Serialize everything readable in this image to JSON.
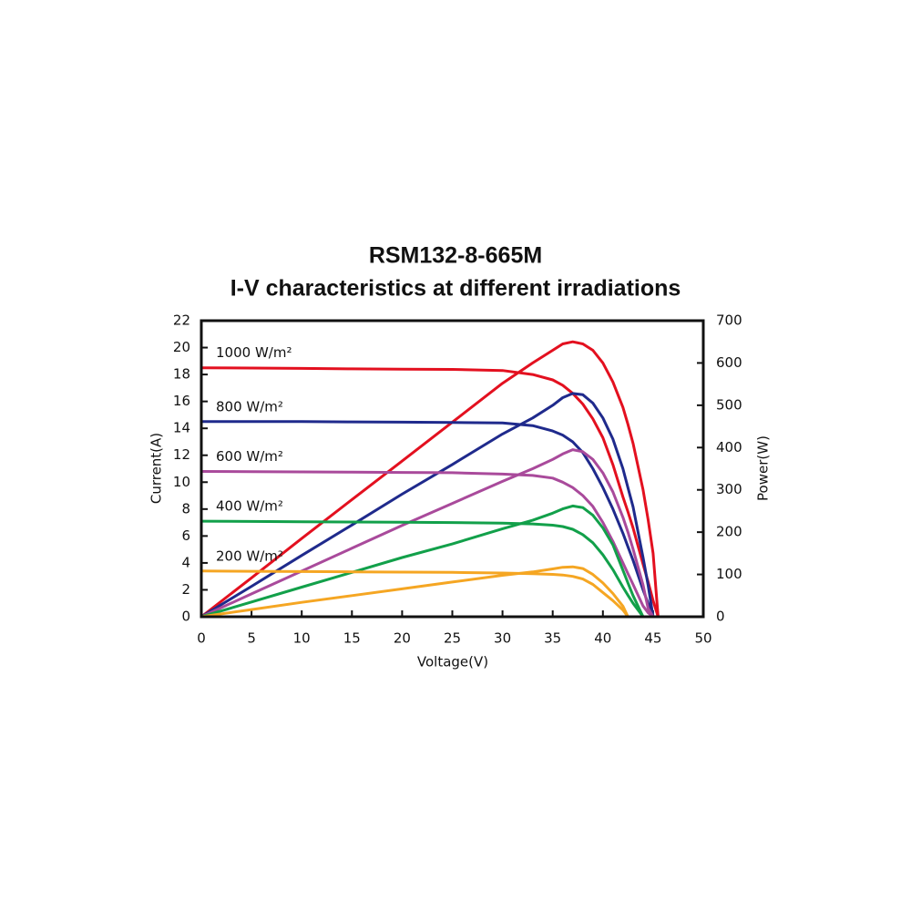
{
  "chart_data": {
    "type": "line",
    "title": "RSM132-8-665M",
    "subtitle": "I-V characteristics at different irradiations",
    "x_label": "Voltage(V)",
    "y_label": "Current(A)",
    "y2_label": "Power(W)",
    "x": [
      0,
      5,
      10,
      15,
      20,
      25,
      30,
      33,
      35,
      36,
      37,
      38,
      39,
      40,
      41,
      42,
      42.5,
      43,
      44,
      44.5,
      45,
      45.5
    ],
    "series": [
      {
        "name": "1000 W/m²",
        "color": "#e3101f",
        "values": [
          18.5,
          18.48,
          18.45,
          18.42,
          18.4,
          18.38,
          18.3,
          18.0,
          17.6,
          17.2,
          16.6,
          15.8,
          14.7,
          13.3,
          11.3,
          8.9,
          7.8,
          6.6,
          3.9,
          2.6,
          1.2,
          0
        ]
      },
      {
        "color": "#e3101f",
        "axis": "y2",
        "values": [
          0,
          92,
          185,
          277,
          368,
          460,
          552,
          600,
          630,
          645,
          650,
          645,
          630,
          600,
          555,
          495,
          455,
          410,
          300,
          230,
          150,
          0
        ]
      },
      {
        "name": "800 W/m²",
        "color": "#1f2a8c",
        "values": [
          14.5,
          14.5,
          14.5,
          14.48,
          14.46,
          14.44,
          14.4,
          14.2,
          13.8,
          13.5,
          13.0,
          12.2,
          11.0,
          9.6,
          8.0,
          6.2,
          5.2,
          4.2,
          2.0,
          1.0,
          0,
          null
        ]
      },
      {
        "color": "#1f2a8c",
        "axis": "y2",
        "values": [
          0,
          72,
          145,
          217,
          290,
          360,
          432,
          470,
          500,
          518,
          528,
          525,
          505,
          470,
          420,
          350,
          305,
          260,
          140,
          75,
          0,
          null
        ]
      },
      {
        "name": "600 W/m²",
        "color": "#a94a9b",
        "values": [
          10.8,
          10.78,
          10.76,
          10.74,
          10.72,
          10.7,
          10.6,
          10.5,
          10.3,
          10.0,
          9.6,
          9.0,
          8.2,
          7.0,
          5.6,
          4.0,
          3.2,
          2.4,
          0.8,
          0.3,
          0,
          null
        ]
      },
      {
        "color": "#a94a9b",
        "axis": "y2",
        "values": [
          0,
          54,
          108,
          162,
          216,
          268,
          320,
          350,
          372,
          385,
          395,
          390,
          372,
          340,
          295,
          235,
          200,
          160,
          75,
          20,
          0,
          null
        ]
      },
      {
        "name": "400 W/m²",
        "color": "#12a04a",
        "values": [
          7.1,
          7.08,
          7.06,
          7.04,
          7.02,
          7.0,
          6.95,
          6.9,
          6.8,
          6.7,
          6.5,
          6.1,
          5.5,
          4.6,
          3.5,
          2.2,
          1.6,
          1.0,
          0,
          null,
          null,
          null
        ]
      },
      {
        "color": "#12a04a",
        "axis": "y2",
        "values": [
          0,
          35,
          70,
          105,
          140,
          172,
          208,
          228,
          245,
          255,
          262,
          258,
          240,
          210,
          170,
          110,
          80,
          50,
          0,
          null,
          null,
          null
        ]
      },
      {
        "name": "200 W/m²",
        "color": "#f5a623",
        "values": [
          3.4,
          3.38,
          3.36,
          3.34,
          3.32,
          3.3,
          3.25,
          3.2,
          3.15,
          3.1,
          3.0,
          2.8,
          2.4,
          1.8,
          1.2,
          0.5,
          0,
          null,
          null,
          null,
          null,
          null
        ]
      },
      {
        "color": "#f5a623",
        "axis": "y2",
        "values": [
          0,
          17,
          34,
          50,
          66,
          82,
          98,
          106,
          113,
          117,
          118,
          114,
          100,
          80,
          55,
          25,
          0,
          null,
          null,
          null,
          null,
          null
        ]
      }
    ],
    "xlim": [
      0,
      50
    ],
    "xticks": [
      0,
      5,
      10,
      15,
      20,
      25,
      30,
      35,
      40,
      45,
      50
    ],
    "ylim": [
      0,
      22
    ],
    "yticks": [
      0,
      2,
      4,
      6,
      8,
      10,
      12,
      14,
      16,
      18,
      20,
      22
    ],
    "y2lim": [
      0,
      700
    ],
    "y2ticks": [
      0,
      100,
      200,
      300,
      400,
      500,
      600,
      700
    ]
  }
}
